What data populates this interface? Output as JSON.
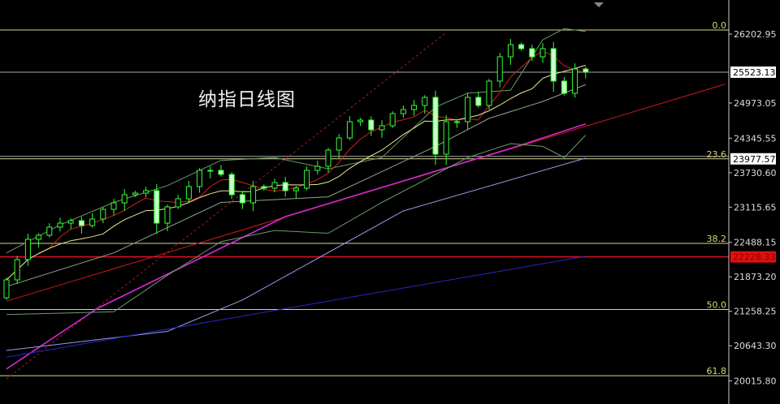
{
  "chart_data": {
    "type": "candlestick",
    "title": "纳指日线图",
    "y_axis": {
      "position": "right",
      "ticks": [
        "26202.95",
        "24973.05",
        "24345.55",
        "23730.60",
        "23115.65",
        "22488.15",
        "21873.20",
        "21258.25",
        "20643.30",
        "20015.80"
      ],
      "ylim": [
        19700,
        26900
      ]
    },
    "price_labels": [
      {
        "value": "25523.13",
        "price": 25523.13,
        "style": "white"
      },
      {
        "value": "23977.57",
        "price": 23977.57,
        "style": "white"
      },
      {
        "value": "22228.33",
        "price": 22228.33,
        "style": "red"
      }
    ],
    "fibonacci": [
      {
        "label": "0.0",
        "price": 26275
      },
      {
        "label": "23.6",
        "price": 23977.57
      },
      {
        "label": "38.2",
        "price": 22470
      },
      {
        "label": "50.0",
        "price": 21290
      },
      {
        "label": "61.8",
        "price": 20110
      }
    ],
    "closes": [
      21819,
      22180,
      22542,
      22614,
      22759,
      22831,
      22875,
      22788,
      22904,
      23077,
      23193,
      23338,
      23367,
      23410,
      22831,
      23121,
      23266,
      23483,
      23772,
      23772,
      23700,
      23338,
      23193,
      23483,
      23454,
      23555,
      23410,
      23454,
      23772,
      23844,
      24134,
      24351,
      24640,
      24669,
      24496,
      24568,
      24785,
      24857,
      24930,
      25074,
      24061,
      24640,
      24640,
      25074,
      24930,
      25364,
      25798,
      26015,
      25943,
      25798,
      25943,
      25364,
      25147,
      25581,
      25523.13
    ],
    "first_open": 21500,
    "lines": [
      {
        "kind": "trendline",
        "color": "#d01818",
        "points": [
          [
            0,
            21440
          ],
          [
            67,
            25310
          ]
        ]
      },
      {
        "kind": "trendline-dashed",
        "color": "#a02020",
        "points": [
          [
            0,
            20050
          ],
          [
            41,
            26230
          ]
        ]
      },
      {
        "kind": "moving-average",
        "color": "#d02ad0",
        "points": [
          [
            0,
            20230
          ],
          [
            8.5,
            21312
          ],
          [
            26,
            22947
          ],
          [
            47,
            24163
          ],
          [
            54,
            24600
          ]
        ]
      },
      {
        "kind": "moving-average",
        "color": "#9a9ae8",
        "points": [
          [
            0,
            20560
          ],
          [
            15,
            20900
          ],
          [
            22,
            21460
          ],
          [
            37,
            23049
          ],
          [
            54,
            23990
          ]
        ]
      },
      {
        "kind": "moving-average",
        "color": "#2828c8",
        "points": [
          [
            0,
            20440
          ],
          [
            27,
            21340
          ],
          [
            54,
            22240
          ]
        ]
      },
      {
        "kind": "bollinger-upper",
        "color": "#6a9a6a",
        "points": [
          [
            0,
            22300
          ],
          [
            5,
            22800
          ],
          [
            10,
            23200
          ],
          [
            15,
            23500
          ],
          [
            20,
            23950
          ],
          [
            25,
            24000
          ],
          [
            30,
            23800
          ],
          [
            35,
            24000
          ],
          [
            40,
            24900
          ],
          [
            43,
            25150
          ],
          [
            47,
            25200
          ],
          [
            50,
            26100
          ],
          [
            52,
            26300
          ],
          [
            54,
            26250
          ]
        ]
      },
      {
        "kind": "bollinger-middle",
        "color": "#8aa88a",
        "points": [
          [
            0,
            21700
          ],
          [
            10,
            22300
          ],
          [
            20,
            23200
          ],
          [
            30,
            23300
          ],
          [
            40,
            24200
          ],
          [
            45,
            24700
          ],
          [
            50,
            25000
          ],
          [
            54,
            25300
          ]
        ]
      },
      {
        "kind": "bollinger-lower",
        "color": "#6a9a6a",
        "points": [
          [
            0,
            21200
          ],
          [
            10,
            21250
          ],
          [
            15,
            21900
          ],
          [
            20,
            22500
          ],
          [
            25,
            22700
          ],
          [
            30,
            22650
          ],
          [
            35,
            23200
          ],
          [
            40,
            23700
          ],
          [
            43,
            24000
          ],
          [
            47,
            24250
          ],
          [
            50,
            24200
          ],
          [
            52,
            24000
          ],
          [
            54,
            24400
          ]
        ]
      }
    ],
    "ma_fast_color": "#d02020",
    "ma_slow_color": "#e8e890",
    "candle_up_color": "#33ff33",
    "candle_down_fill": "#c8ffc8",
    "grid": false
  }
}
